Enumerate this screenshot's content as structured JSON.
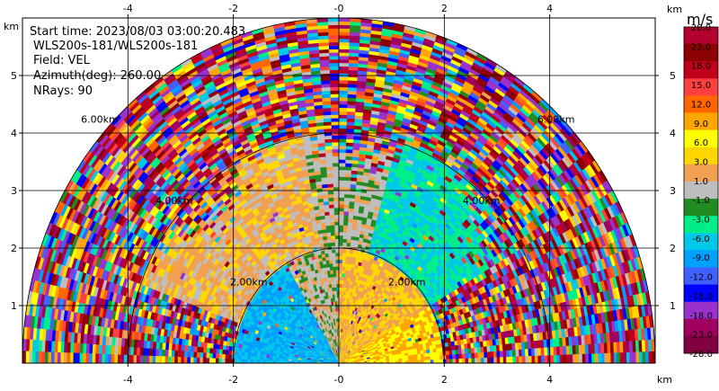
{
  "info": {
    "start_time": "Start time: 2023/08/03 03:00:20.483",
    "instrument": "WLS200s-181/WLS200s-181",
    "field": "Field: VEL",
    "azimuth": "Azimuth(deg): 260.00",
    "nrays": "NRays: 90"
  },
  "colors": {
    "background": "#ffffff",
    "grid": "#000000"
  },
  "chart_data": {
    "type": "heatmap",
    "subtype": "radar RHI scan (polar)",
    "xlabel": "",
    "ylabel": "",
    "x_unit_label": "km",
    "y_unit_label": "km",
    "xlim": [
      -6.0,
      6.0
    ],
    "ylim": [
      0.0,
      6.0
    ],
    "x_ticks": [
      -4,
      -2,
      0,
      2,
      4
    ],
    "x_tick_labels": [
      "-4",
      "-2",
      "-0",
      "2",
      "4"
    ],
    "y_ticks": [
      1,
      2,
      3,
      4,
      5
    ],
    "y_tick_labels": [
      "1",
      "2",
      "3",
      "4",
      "5"
    ],
    "range_rings_km": [
      2,
      4,
      6
    ],
    "range_ring_labels": [
      "2.00km",
      "4.00km",
      "6.00km"
    ],
    "max_range_km": 6.0,
    "grid": true,
    "colorbar": {
      "unit": "m/s",
      "labels": [
        "28.0",
        "23.0",
        "18.0",
        "15.0",
        "12.0",
        "9.0",
        "6.0",
        "3.0",
        "1.0",
        "-1.0",
        "-3.0",
        "-6.0",
        "-9.0",
        "-12.0",
        "-15.0",
        "-18.0",
        "-23.0",
        "-28.0"
      ],
      "colors": [
        "#b3002d",
        "#8b0000",
        "#c0001a",
        "#ff4040",
        "#ff6600",
        "#ffa500",
        "#ffff00",
        "#ffd700",
        "#f0a050",
        "#bebebe",
        "#228b22",
        "#00ee88",
        "#00c8e8",
        "#00a0ff",
        "#4060ff",
        "#0000ff",
        "#9932cc",
        "#a00060",
        "#800040"
      ]
    },
    "regions": [
      {
        "r_max_km": 2.0,
        "el_min_deg": 0,
        "el_max_deg": 30,
        "value": 9.0,
        "label": "near-range yellow"
      },
      {
        "r_max_km": 2.0,
        "el_min_deg": 30,
        "el_max_deg": 90,
        "value": 3.0,
        "label": "near-range orange"
      },
      {
        "r_max_km": 2.0,
        "el_min_deg": 90,
        "el_max_deg": 120,
        "value": 0.0,
        "label": "vertical gray"
      },
      {
        "r_max_km": 2.0,
        "el_min_deg": 120,
        "el_max_deg": 180,
        "value": -9.0,
        "label": "near-range blue/cyan"
      },
      {
        "r_max_km": 4.0,
        "el_min_deg": 30,
        "el_max_deg": 75,
        "value": -6.0,
        "label": "mid-range green"
      },
      {
        "r_max_km": 4.0,
        "el_min_deg": 75,
        "el_max_deg": 100,
        "value": 0.0,
        "label": "mid-range gray"
      },
      {
        "r_max_km": 4.0,
        "el_min_deg": 100,
        "el_max_deg": 160,
        "value": 2.0,
        "label": "mid-range orange"
      },
      {
        "r_max_km": 6.0,
        "el_min_deg": 0,
        "el_max_deg": 180,
        "value": null,
        "label": "far-range noise"
      }
    ]
  }
}
